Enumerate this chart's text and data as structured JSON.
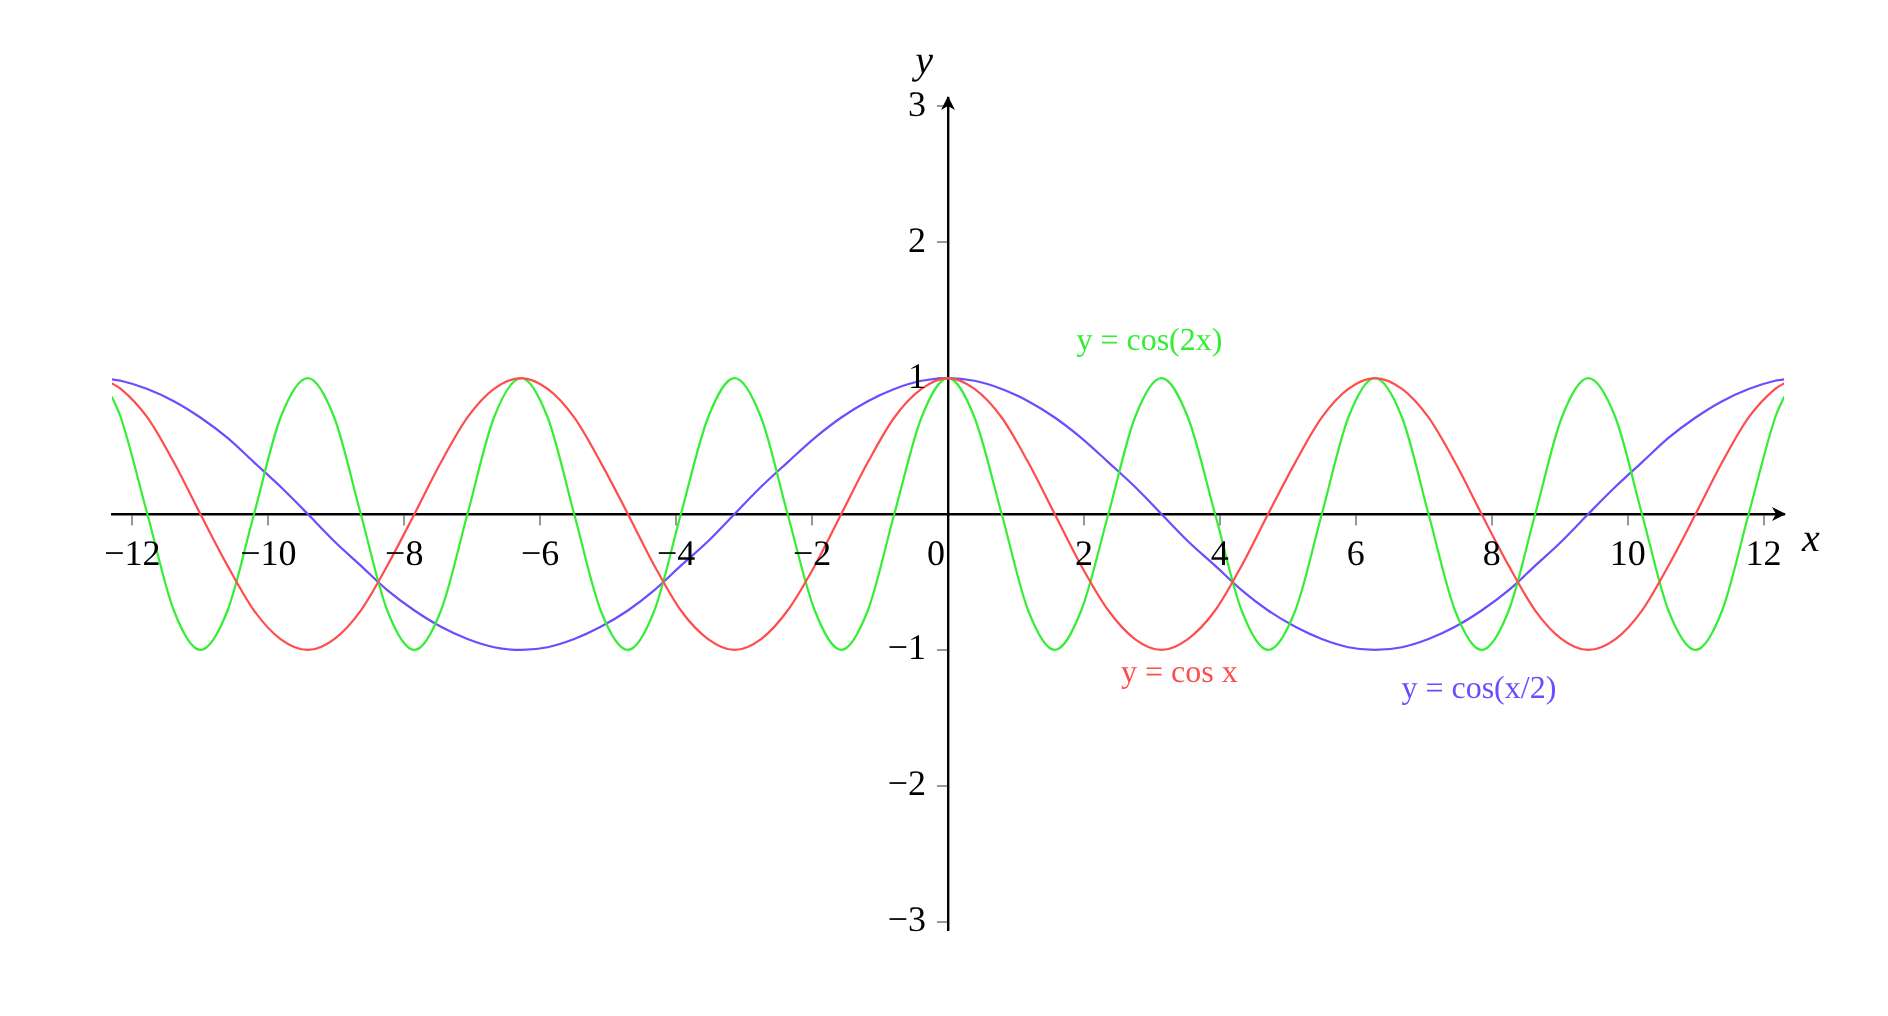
{
  "chart_data": {
    "type": "line",
    "x": [
      -12.3,
      -12.17,
      -11.78,
      -11.39,
      -11.0,
      -10.6,
      -10.21,
      -9.82,
      -9.42,
      -9.03,
      -8.64,
      -8.25,
      -7.85,
      -7.46,
      -7.07,
      -6.68,
      -6.28,
      -5.89,
      -5.5,
      -5.11,
      -4.71,
      -4.32,
      -3.93,
      -3.53,
      -3.14,
      -2.75,
      -2.36,
      -1.96,
      -1.57,
      -1.18,
      -0.79,
      -0.39,
      0,
      0.39,
      0.79,
      1.18,
      1.57,
      1.96,
      2.36,
      2.75,
      3.14,
      3.53,
      3.93,
      4.32,
      4.71,
      5.11,
      5.5,
      5.89,
      6.28,
      6.68,
      7.07,
      7.46,
      7.85,
      8.25,
      8.64,
      9.03,
      9.42,
      9.82,
      10.21,
      10.6,
      11.0,
      11.39,
      11.78,
      12.17,
      12.3
    ],
    "series": [
      {
        "name": "y = cos x",
        "color": "#ff4d4d",
        "values": [
          0.96,
          0.92,
          0.71,
          0.38,
          0,
          -0.38,
          -0.71,
          -0.92,
          -1,
          -0.92,
          -0.71,
          -0.38,
          0,
          0.38,
          0.71,
          0.92,
          1,
          0.92,
          0.71,
          0.38,
          0,
          -0.38,
          -0.71,
          -0.92,
          -1,
          -0.92,
          -0.71,
          -0.38,
          0,
          0.38,
          0.71,
          0.92,
          1,
          0.92,
          0.71,
          0.38,
          0,
          -0.38,
          -0.71,
          -0.92,
          -1,
          -0.92,
          -0.71,
          -0.38,
          0,
          0.38,
          0.71,
          0.92,
          1,
          0.92,
          0.71,
          0.38,
          0,
          -0.38,
          -0.71,
          -0.92,
          -1,
          -0.92,
          -0.71,
          -0.38,
          0,
          0.38,
          0.71,
          0.92,
          0.96
        ]
      },
      {
        "name": "y = cos(2x)",
        "color": "#33ee33",
        "values": [
          0.86,
          0.71,
          0,
          -0.71,
          -1,
          -0.71,
          0,
          0.71,
          1,
          0.71,
          0,
          -0.71,
          -1,
          -0.71,
          0,
          0.71,
          1,
          0.71,
          0,
          -0.71,
          -1,
          -0.71,
          0,
          0.71,
          1,
          0.71,
          0,
          -0.71,
          -1,
          -0.71,
          0,
          0.71,
          1,
          0.71,
          0,
          -0.71,
          -1,
          -0.71,
          0,
          0.71,
          1,
          0.71,
          0,
          -0.71,
          -1,
          -0.71,
          0,
          0.71,
          1,
          0.71,
          0,
          -0.71,
          -1,
          -0.71,
          0,
          0.71,
          1,
          0.71,
          0,
          -0.71,
          -1,
          -0.71,
          0,
          0.71,
          0.86
        ]
      },
      {
        "name": "y = cos(x/2)",
        "color": "#6a4dff",
        "values": [
          0.99,
          0.98,
          0.92,
          0.83,
          0.71,
          0.56,
          0.38,
          0.2,
          0,
          -0.2,
          -0.38,
          -0.56,
          -0.71,
          -0.83,
          -0.92,
          -0.98,
          -1,
          -0.98,
          -0.92,
          -0.83,
          -0.71,
          -0.56,
          -0.38,
          -0.2,
          0,
          0.2,
          0.38,
          0.56,
          0.71,
          0.83,
          0.92,
          0.98,
          1,
          0.98,
          0.92,
          0.83,
          0.71,
          0.56,
          0.38,
          0.2,
          0,
          -0.2,
          -0.38,
          -0.56,
          -0.71,
          -0.83,
          -0.92,
          -0.98,
          -1,
          -0.98,
          -0.92,
          -0.83,
          -0.71,
          -0.56,
          -0.38,
          -0.2,
          0,
          0.2,
          0.38,
          0.56,
          0.71,
          0.83,
          0.92,
          0.98,
          0.99
        ]
      }
    ],
    "xlim": [
      -12.3,
      12.3
    ],
    "ylim": [
      -3.06,
      3.06
    ],
    "xticks": [
      -12,
      -10,
      -8,
      -6,
      -4,
      -2,
      0,
      2,
      4,
      6,
      8,
      10,
      12
    ],
    "yticks": [
      -3,
      -2,
      -1,
      1,
      2,
      3
    ],
    "xlabel": "x",
    "ylabel": "y",
    "marker": "none"
  }
}
